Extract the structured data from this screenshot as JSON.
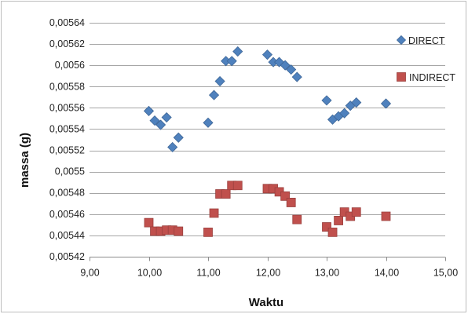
{
  "chart_data": {
    "type": "scatter",
    "title": "",
    "xlabel": "Waktu",
    "ylabel": "massa (g)",
    "xlim": [
      9.0,
      15.0
    ],
    "ylim": [
      0.00542,
      0.00564
    ],
    "x_ticks": [
      9.0,
      10.0,
      11.0,
      12.0,
      13.0,
      14.0,
      15.0
    ],
    "x_tick_labels": [
      "9,00",
      "10,00",
      "11,00",
      "12,00",
      "13,00",
      "14,00",
      "15,00"
    ],
    "y_ticks": [
      0.00542,
      0.00544,
      0.00546,
      0.00548,
      0.0055,
      0.00552,
      0.00554,
      0.00556,
      0.00558,
      0.0056,
      0.00562,
      0.00564
    ],
    "y_tick_labels": [
      "0,00542",
      "0,00544",
      "0,00546",
      "0,00548",
      "0,0055",
      "0,00552",
      "0,00554",
      "0,00556",
      "0,00558",
      "0,0056",
      "0,00562",
      "0,00564"
    ],
    "grid": "horizontal",
    "legend_position": "right",
    "series": [
      {
        "name": "DIRECT",
        "marker": "diamond",
        "color": "#4f81bd",
        "points": [
          [
            10.0,
            0.005557
          ],
          [
            10.1,
            0.005548
          ],
          [
            10.2,
            0.005544
          ],
          [
            10.3,
            0.005551
          ],
          [
            10.4,
            0.005523
          ],
          [
            10.5,
            0.005532
          ],
          [
            11.0,
            0.005546
          ],
          [
            11.1,
            0.005572
          ],
          [
            11.2,
            0.005585
          ],
          [
            11.3,
            0.005604
          ],
          [
            11.4,
            0.005604
          ],
          [
            11.5,
            0.005613
          ],
          [
            12.0,
            0.00561
          ],
          [
            12.1,
            0.005603
          ],
          [
            12.2,
            0.005603
          ],
          [
            12.3,
            0.0056
          ],
          [
            12.4,
            0.005596
          ],
          [
            12.5,
            0.005589
          ],
          [
            13.0,
            0.005567
          ],
          [
            13.1,
            0.005549
          ],
          [
            13.2,
            0.005552
          ],
          [
            13.3,
            0.005555
          ],
          [
            13.4,
            0.005562
          ],
          [
            13.5,
            0.005565
          ],
          [
            14.0,
            0.005564
          ]
        ]
      },
      {
        "name": "INDIRECT",
        "marker": "square",
        "color": "#c0504d",
        "points": [
          [
            10.0,
            0.005452
          ],
          [
            10.1,
            0.005444
          ],
          [
            10.2,
            0.005444
          ],
          [
            10.3,
            0.005445
          ],
          [
            10.4,
            0.005445
          ],
          [
            10.5,
            0.005444
          ],
          [
            11.0,
            0.005443
          ],
          [
            11.1,
            0.005461
          ],
          [
            11.2,
            0.005479
          ],
          [
            11.3,
            0.005479
          ],
          [
            11.4,
            0.005487
          ],
          [
            11.5,
            0.005487
          ],
          [
            12.0,
            0.005484
          ],
          [
            12.1,
            0.005484
          ],
          [
            12.2,
            0.005481
          ],
          [
            12.3,
            0.005477
          ],
          [
            12.4,
            0.005471
          ],
          [
            12.5,
            0.005455
          ],
          [
            13.0,
            0.005448
          ],
          [
            13.1,
            0.005443
          ],
          [
            13.2,
            0.005454
          ],
          [
            13.3,
            0.005462
          ],
          [
            13.4,
            0.005458
          ],
          [
            13.5,
            0.005462
          ],
          [
            14.0,
            0.005458
          ]
        ]
      }
    ]
  }
}
